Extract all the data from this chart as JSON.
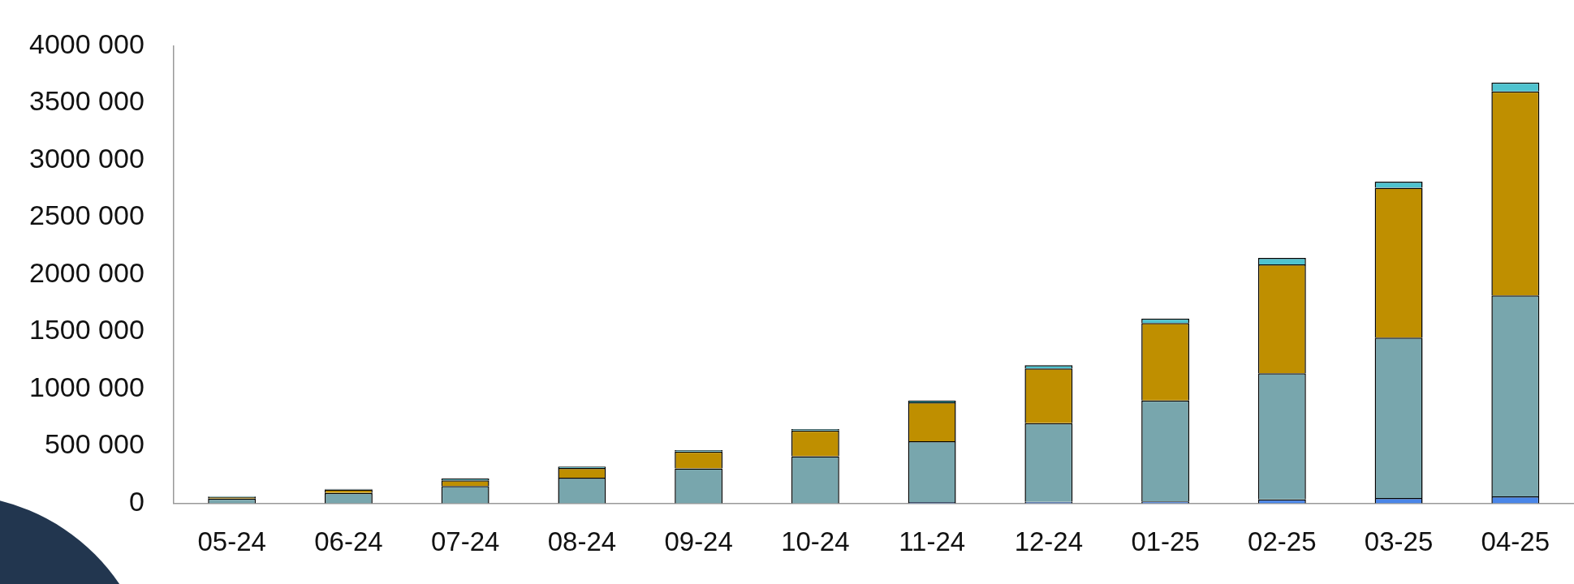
{
  "chart_data": {
    "type": "bar",
    "stacked": true,
    "categories": [
      "05-24",
      "06-24",
      "07-24",
      "08-24",
      "09-24",
      "10-24",
      "11-24",
      "12-24",
      "01-25",
      "02-25",
      "03-25",
      "04-25"
    ],
    "series": [
      {
        "color": "#4a86e8",
        "values": [
          null,
          null,
          null,
          null,
          null,
          null,
          10000,
          12000,
          15000,
          33000,
          45000,
          60000
        ]
      },
      {
        "color": "#78a6ad",
        "values": [
          40000,
          89000,
          150000,
          223000,
          304000,
          411000,
          532000,
          688000,
          884000,
          1102000,
          1402000,
          1757000
        ]
      },
      {
        "color": "#bf8f00",
        "values": [
          15000,
          30000,
          50000,
          85000,
          148000,
          225000,
          340000,
          479000,
          676000,
          953000,
          1311000,
          1783000
        ]
      },
      {
        "color": "#4fc3cf",
        "values": [
          7000,
          6000,
          15000,
          12000,
          12000,
          13000,
          14000,
          27000,
          39000,
          56000,
          53000,
          78000
        ]
      }
    ],
    "ylim": [
      0,
      4000000
    ],
    "yticks": [
      {
        "value": 0,
        "label": "0"
      },
      {
        "value": 500000,
        "label": "500 000"
      },
      {
        "value": 1000000,
        "label": "1000 000"
      },
      {
        "value": 1500000,
        "label": "1500 000"
      },
      {
        "value": 2000000,
        "label": "2000 000"
      },
      {
        "value": 2500000,
        "label": "2500 000"
      },
      {
        "value": 3000000,
        "label": "3000 000"
      },
      {
        "value": 3500000,
        "label": "3500 000"
      },
      {
        "value": 4000000,
        "label": "4000 000"
      }
    ],
    "grid": false,
    "legend": false
  }
}
